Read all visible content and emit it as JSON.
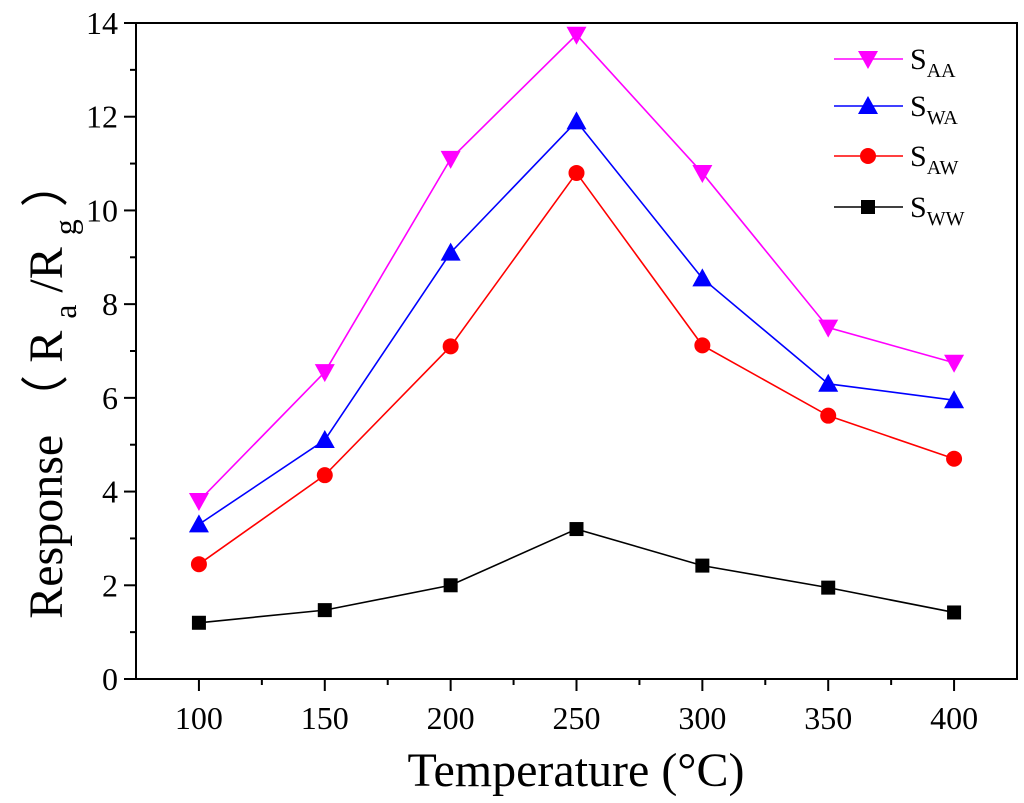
{
  "chart_data": {
    "type": "line",
    "title": "",
    "xlabel": "Temperature (°C)",
    "ylabel": {
      "prefix": "Response",
      "paren_open": "（",
      "r1": "R",
      "sub1": "a",
      "slash": "/R",
      "sub2": "g",
      "paren_close": "）"
    },
    "x": [
      100,
      150,
      200,
      250,
      300,
      350,
      400
    ],
    "xlim": [
      75,
      425
    ],
    "ylim": [
      0,
      14
    ],
    "x_ticks": [
      "100",
      "150",
      "200",
      "250",
      "300",
      "350",
      "400"
    ],
    "y_ticks": [
      "0",
      "2",
      "4",
      "6",
      "8",
      "10",
      "12",
      "14"
    ],
    "grid": false,
    "legend_position": "top-right",
    "series": [
      {
        "name": "SAA",
        "label_main": "S",
        "label_sub": "AA",
        "marker": "triangle-down",
        "color": "#ff00ff",
        "values": [
          3.8,
          6.55,
          11.1,
          13.75,
          10.8,
          7.5,
          6.75
        ]
      },
      {
        "name": "SWA",
        "label_main": "S",
        "label_sub": "WA",
        "marker": "triangle-up",
        "color": "#0000ff",
        "values": [
          3.3,
          5.1,
          9.1,
          11.9,
          8.55,
          6.3,
          5.95
        ]
      },
      {
        "name": "SAW",
        "label_main": "S",
        "label_sub": "AW",
        "marker": "circle",
        "color": "#ff0000",
        "values": [
          2.45,
          4.35,
          7.1,
          10.8,
          7.12,
          5.62,
          4.7
        ]
      },
      {
        "name": "SWW",
        "label_main": "S",
        "label_sub": "WW",
        "marker": "square",
        "color": "#000000",
        "values": [
          1.2,
          1.47,
          2.0,
          3.2,
          2.42,
          1.95,
          1.42
        ]
      }
    ]
  }
}
